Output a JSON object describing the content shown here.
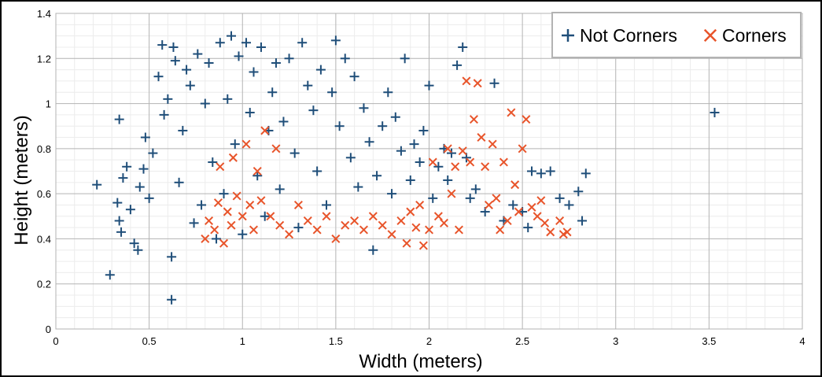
{
  "chart_data": {
    "type": "scatter",
    "title": "",
    "xlabel": "Width (meters)",
    "ylabel": "Height (meters)",
    "xlim": [
      0,
      4
    ],
    "ylim": [
      0,
      1.4
    ],
    "x_ticks": [
      "0",
      "0.5",
      "1",
      "1.5",
      "2",
      "2.5",
      "3",
      "3.5",
      "4"
    ],
    "y_ticks": [
      "0",
      "0.2",
      "0.4",
      "0.6",
      "0.8",
      "1",
      "1.2",
      "1.4"
    ],
    "grid": true,
    "legend_position": "top-right",
    "series": [
      {
        "name": "Not Corners",
        "marker": "plus",
        "color": "#1f4e79",
        "points": [
          [
            0.22,
            0.64
          ],
          [
            0.29,
            0.24
          ],
          [
            0.33,
            0.56
          ],
          [
            0.34,
            0.93
          ],
          [
            0.34,
            0.48
          ],
          [
            0.35,
            0.43
          ],
          [
            0.36,
            0.67
          ],
          [
            0.38,
            0.72
          ],
          [
            0.4,
            0.53
          ],
          [
            0.42,
            0.38
          ],
          [
            0.44,
            0.35
          ],
          [
            0.45,
            0.63
          ],
          [
            0.47,
            0.71
          ],
          [
            0.48,
            0.85
          ],
          [
            0.5,
            0.58
          ],
          [
            0.52,
            0.78
          ],
          [
            0.55,
            1.12
          ],
          [
            0.57,
            1.26
          ],
          [
            0.58,
            0.95
          ],
          [
            0.6,
            1.02
          ],
          [
            0.62,
            0.32
          ],
          [
            0.62,
            0.13
          ],
          [
            0.63,
            1.25
          ],
          [
            0.64,
            1.19
          ],
          [
            0.66,
            0.65
          ],
          [
            0.68,
            0.88
          ],
          [
            0.7,
            1.15
          ],
          [
            0.72,
            1.08
          ],
          [
            0.74,
            0.47
          ],
          [
            0.76,
            1.22
          ],
          [
            0.78,
            0.55
          ],
          [
            0.8,
            1.0
          ],
          [
            0.82,
            1.18
          ],
          [
            0.84,
            0.74
          ],
          [
            0.86,
            0.4
          ],
          [
            0.88,
            1.27
          ],
          [
            0.9,
            0.6
          ],
          [
            0.92,
            1.02
          ],
          [
            0.94,
            1.3
          ],
          [
            0.96,
            0.82
          ],
          [
            0.98,
            1.21
          ],
          [
            1.0,
            0.42
          ],
          [
            1.02,
            1.27
          ],
          [
            1.04,
            0.96
          ],
          [
            1.06,
            1.14
          ],
          [
            1.08,
            0.68
          ],
          [
            1.1,
            1.25
          ],
          [
            1.12,
            0.5
          ],
          [
            1.14,
            0.88
          ],
          [
            1.16,
            1.05
          ],
          [
            1.18,
            1.18
          ],
          [
            1.2,
            0.62
          ],
          [
            1.22,
            0.92
          ],
          [
            1.25,
            1.2
          ],
          [
            1.28,
            0.78
          ],
          [
            1.3,
            0.45
          ],
          [
            1.32,
            1.27
          ],
          [
            1.35,
            1.08
          ],
          [
            1.38,
            0.97
          ],
          [
            1.4,
            0.7
          ],
          [
            1.42,
            1.15
          ],
          [
            1.45,
            0.55
          ],
          [
            1.48,
            1.05
          ],
          [
            1.5,
            1.28
          ],
          [
            1.52,
            0.9
          ],
          [
            1.55,
            1.2
          ],
          [
            1.58,
            0.76
          ],
          [
            1.6,
            1.12
          ],
          [
            1.62,
            0.63
          ],
          [
            1.65,
            0.98
          ],
          [
            1.68,
            0.83
          ],
          [
            1.7,
            0.35
          ],
          [
            1.72,
            0.68
          ],
          [
            1.75,
            0.9
          ],
          [
            1.78,
            1.05
          ],
          [
            1.8,
            0.6
          ],
          [
            1.82,
            0.94
          ],
          [
            1.85,
            0.79
          ],
          [
            1.87,
            1.2
          ],
          [
            1.9,
            0.66
          ],
          [
            1.92,
            0.82
          ],
          [
            1.95,
            0.74
          ],
          [
            1.97,
            0.88
          ],
          [
            2.0,
            1.08
          ],
          [
            2.02,
            0.58
          ],
          [
            2.05,
            0.72
          ],
          [
            2.08,
            0.8
          ],
          [
            2.1,
            0.66
          ],
          [
            2.12,
            0.78
          ],
          [
            2.15,
            1.17
          ],
          [
            2.18,
            1.25
          ],
          [
            2.2,
            0.76
          ],
          [
            2.22,
            0.58
          ],
          [
            2.25,
            0.62
          ],
          [
            2.3,
            0.52
          ],
          [
            2.35,
            1.09
          ],
          [
            2.4,
            0.48
          ],
          [
            2.45,
            0.55
          ],
          [
            2.5,
            0.52
          ],
          [
            2.53,
            0.45
          ],
          [
            2.55,
            0.7
          ],
          [
            2.6,
            0.69
          ],
          [
            2.65,
            0.7
          ],
          [
            2.7,
            0.58
          ],
          [
            2.75,
            0.55
          ],
          [
            2.8,
            0.61
          ],
          [
            2.82,
            0.48
          ],
          [
            2.84,
            0.69
          ],
          [
            3.53,
            0.96
          ]
        ]
      },
      {
        "name": "Corners",
        "marker": "x",
        "color": "#e8542a",
        "points": [
          [
            0.8,
            0.4
          ],
          [
            0.82,
            0.48
          ],
          [
            0.85,
            0.44
          ],
          [
            0.87,
            0.56
          ],
          [
            0.88,
            0.72
          ],
          [
            0.9,
            0.38
          ],
          [
            0.92,
            0.52
          ],
          [
            0.94,
            0.46
          ],
          [
            0.95,
            0.76
          ],
          [
            0.97,
            0.59
          ],
          [
            1.0,
            0.5
          ],
          [
            1.02,
            0.82
          ],
          [
            1.04,
            0.55
          ],
          [
            1.06,
            0.44
          ],
          [
            1.08,
            0.7
          ],
          [
            1.1,
            0.57
          ],
          [
            1.12,
            0.88
          ],
          [
            1.15,
            0.5
          ],
          [
            1.18,
            0.8
          ],
          [
            1.2,
            0.46
          ],
          [
            1.25,
            0.42
          ],
          [
            1.3,
            0.55
          ],
          [
            1.35,
            0.48
          ],
          [
            1.4,
            0.44
          ],
          [
            1.45,
            0.5
          ],
          [
            1.5,
            0.4
          ],
          [
            1.55,
            0.46
          ],
          [
            1.6,
            0.48
          ],
          [
            1.65,
            0.44
          ],
          [
            1.7,
            0.5
          ],
          [
            1.75,
            0.46
          ],
          [
            1.8,
            0.42
          ],
          [
            1.85,
            0.48
          ],
          [
            1.88,
            0.38
          ],
          [
            1.9,
            0.52
          ],
          [
            1.93,
            0.45
          ],
          [
            1.95,
            0.55
          ],
          [
            1.97,
            0.37
          ],
          [
            2.0,
            0.44
          ],
          [
            2.02,
            0.74
          ],
          [
            2.05,
            0.5
          ],
          [
            2.08,
            0.47
          ],
          [
            2.1,
            0.8
          ],
          [
            2.12,
            0.6
          ],
          [
            2.14,
            0.72
          ],
          [
            2.16,
            0.44
          ],
          [
            2.18,
            0.79
          ],
          [
            2.2,
            1.1
          ],
          [
            2.22,
            0.74
          ],
          [
            2.24,
            0.93
          ],
          [
            2.26,
            1.09
          ],
          [
            2.28,
            0.85
          ],
          [
            2.3,
            0.72
          ],
          [
            2.32,
            0.55
          ],
          [
            2.34,
            0.82
          ],
          [
            2.36,
            0.58
          ],
          [
            2.38,
            0.44
          ],
          [
            2.4,
            0.74
          ],
          [
            2.42,
            0.48
          ],
          [
            2.44,
            0.96
          ],
          [
            2.46,
            0.64
          ],
          [
            2.48,
            0.52
          ],
          [
            2.5,
            0.8
          ],
          [
            2.52,
            0.93
          ],
          [
            2.55,
            0.54
          ],
          [
            2.58,
            0.5
          ],
          [
            2.6,
            0.57
          ],
          [
            2.62,
            0.47
          ],
          [
            2.65,
            0.43
          ],
          [
            2.7,
            0.48
          ],
          [
            2.72,
            0.42
          ],
          [
            2.74,
            0.43
          ]
        ]
      }
    ]
  }
}
